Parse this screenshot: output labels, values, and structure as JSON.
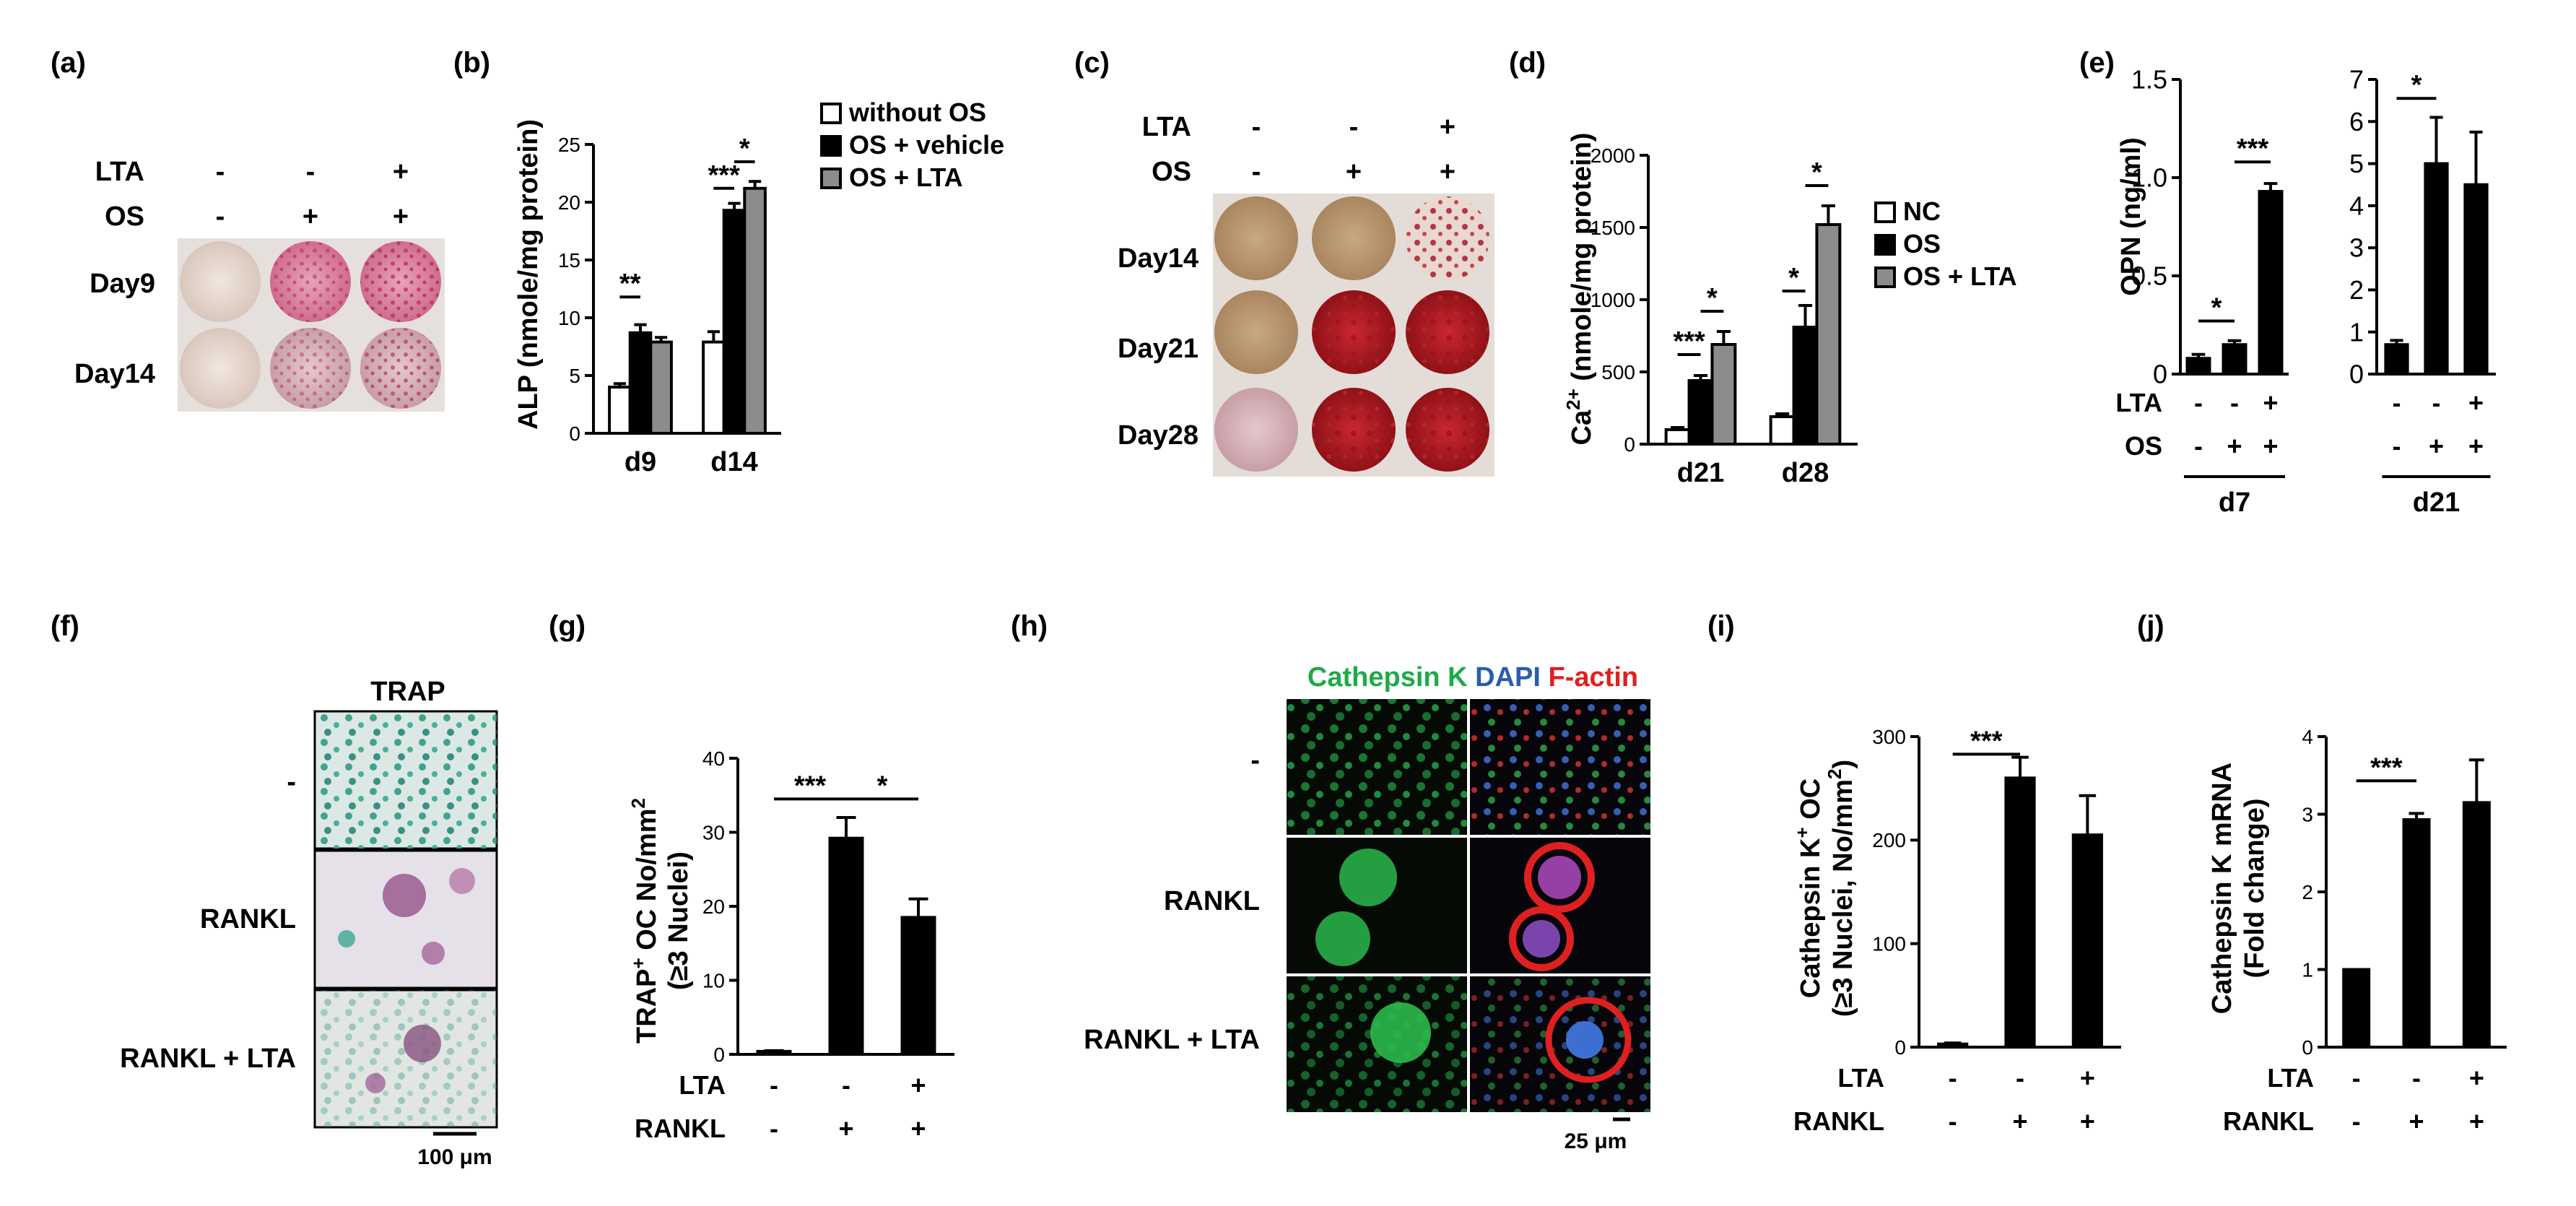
{
  "panel_labels": [
    "(a)",
    "(b)",
    "(c)",
    "(d)",
    "(e)",
    "(f)",
    "(g)",
    "(h)",
    "(i)",
    "(j)"
  ],
  "colors": {
    "without_os": "#ffffff",
    "vehicle": "#000000",
    "lta": "#8c8c8c",
    "ink": "#000000",
    "green": "#1faa4a",
    "blue": "#2a5db0",
    "red": "#e02020"
  },
  "panel_a": {
    "row_labels": [
      "LTA",
      "OS"
    ],
    "signs": [
      [
        "-",
        "-",
        "+"
      ],
      [
        "-",
        "+",
        "+"
      ]
    ],
    "day_labels": [
      "Day9",
      "Day14"
    ]
  },
  "panel_c": {
    "row_labels": [
      "LTA",
      "OS"
    ],
    "signs": [
      [
        "-",
        "-",
        "+"
      ],
      [
        "-",
        "+",
        "+"
      ]
    ],
    "day_labels": [
      "Day14",
      "Day21",
      "Day28"
    ]
  },
  "panel_f": {
    "column_title": "TRAP",
    "row_labels": [
      "-",
      "RANKL",
      "RANKL + LTA"
    ],
    "scale_label": "100 μm"
  },
  "panel_h": {
    "stain_labels": [
      "Cathepsin K",
      "DAPI",
      "F-actin"
    ],
    "row_labels": [
      "-",
      "RANKL",
      "RANKL + LTA"
    ],
    "scale_label": "25 μm"
  },
  "chart_data": [
    {
      "panel": "(b)",
      "type": "bar",
      "ylabel": "ALP (nmole/mg protein)",
      "ylim": [
        0,
        25
      ],
      "yticks": [
        0,
        5,
        10,
        15,
        20,
        25
      ],
      "categories": [
        "d9",
        "d14"
      ],
      "series": [
        {
          "name": "without OS",
          "values": [
            4.0,
            7.9
          ],
          "errors": [
            0.3,
            0.9
          ]
        },
        {
          "name": "OS + vehicle",
          "values": [
            8.7,
            19.3
          ],
          "errors": [
            0.7,
            0.6
          ]
        },
        {
          "name": "OS + LTA",
          "values": [
            7.9,
            21.2
          ],
          "errors": [
            0.4,
            0.6
          ]
        }
      ],
      "significance": [
        {
          "category": "d9",
          "from": 0,
          "to": 1,
          "label": "**",
          "y": 11.8
        },
        {
          "category": "d14",
          "from": 0,
          "to": 1,
          "label": "***",
          "y": 21.2
        },
        {
          "category": "d14",
          "from": 1,
          "to": 2,
          "label": "*",
          "y": 23.5
        }
      ],
      "legend": "right"
    },
    {
      "panel": "(d)",
      "type": "bar",
      "ylabel": "Ca2+ (nmole/mg protein)",
      "ylim": [
        0,
        2000
      ],
      "yticks": [
        0,
        500,
        1000,
        1500,
        2000
      ],
      "categories": [
        "d21",
        "d28"
      ],
      "series": [
        {
          "name": "NC",
          "values": [
            100,
            190
          ],
          "errors": [
            15,
            20
          ]
        },
        {
          "name": "OS",
          "values": [
            440,
            810
          ],
          "errors": [
            35,
            150
          ]
        },
        {
          "name": "OS + LTA",
          "values": [
            690,
            1520
          ],
          "errors": [
            90,
            130
          ]
        }
      ],
      "significance": [
        {
          "category": "d21",
          "from": 0,
          "to": 1,
          "label": "***",
          "y": 620
        },
        {
          "category": "d21",
          "from": 1,
          "to": 2,
          "label": "*",
          "y": 920
        },
        {
          "category": "d28",
          "from": 0,
          "to": 1,
          "label": "*",
          "y": 1060
        },
        {
          "category": "d28",
          "from": 1,
          "to": 2,
          "label": "*",
          "y": 1790
        }
      ],
      "legend": "right"
    },
    {
      "panel": "(e) d7",
      "type": "bar",
      "ylabel": "OPN (ng/ml)",
      "ylim": [
        0,
        1.5
      ],
      "yticks": [
        "0",
        "0.5",
        "1.0",
        "1.5"
      ],
      "group_label": "d7",
      "row_labels": [
        "LTA",
        "OS"
      ],
      "signs": [
        [
          "-",
          "-",
          "+"
        ],
        [
          "-",
          "+",
          "+"
        ]
      ],
      "values": [
        0.08,
        0.15,
        0.93
      ],
      "errors": [
        0.02,
        0.02,
        0.04
      ],
      "significance": [
        {
          "from": 0,
          "to": 1,
          "label": "*",
          "y": 0.27
        },
        {
          "from": 1,
          "to": 2,
          "label": "***",
          "y": 1.08
        }
      ]
    },
    {
      "panel": "(e) d21",
      "type": "bar",
      "ylim": [
        0,
        7
      ],
      "yticks": [
        "0",
        "1",
        "2",
        "3",
        "4",
        "5",
        "6",
        "7"
      ],
      "group_label": "d21",
      "signs": [
        [
          "-",
          "-",
          "+"
        ],
        [
          "-",
          "+",
          "+"
        ]
      ],
      "values": [
        0.7,
        5.0,
        4.5
      ],
      "errors": [
        0.1,
        1.1,
        1.25
      ],
      "significance": [
        {
          "from": 0,
          "to": 1,
          "label": "*",
          "y": 6.55
        }
      ]
    },
    {
      "panel": "(g)",
      "type": "bar",
      "ylabel_lines": [
        "TRAP+ OC No/mm2",
        "(≥3 Nuclei)"
      ],
      "ylim": [
        0,
        40
      ],
      "yticks": [
        "0",
        "10",
        "20",
        "30",
        "40"
      ],
      "row_labels": [
        "LTA",
        "RANKL"
      ],
      "signs": [
        [
          "-",
          "-",
          "+"
        ],
        [
          "-",
          "+",
          "+"
        ]
      ],
      "values": [
        0.4,
        29.2,
        18.5
      ],
      "errors": [
        0.1,
        2.8,
        2.5
      ],
      "significance": [
        {
          "from": 0,
          "to": 1,
          "label": "***",
          "y": 34.5
        },
        {
          "from": 1,
          "to": 2,
          "label": "*",
          "y": 34.5
        }
      ]
    },
    {
      "panel": "(i)",
      "type": "bar",
      "ylabel_lines": [
        "Cathepsin K+ OC",
        "(≥3 Nuclei, No/mm2)"
      ],
      "ylim": [
        0,
        300
      ],
      "yticks": [
        "0",
        "100",
        "200",
        "300"
      ],
      "row_labels": [
        "LTA",
        "RANKL"
      ],
      "signs": [
        [
          "-",
          "-",
          "+"
        ],
        [
          "-",
          "+",
          "+"
        ]
      ],
      "values": [
        3,
        260,
        205
      ],
      "errors": [
        1,
        20,
        38
      ],
      "significance": [
        {
          "from": 0,
          "to": 1,
          "label": "***",
          "y": 283
        }
      ]
    },
    {
      "panel": "(j)",
      "type": "bar",
      "ylabel_lines": [
        "Cathepsin K mRNA",
        "(Fold change)"
      ],
      "ylim": [
        0,
        4
      ],
      "yticks": [
        "0",
        "1",
        "2",
        "3",
        "4"
      ],
      "row_labels": [
        "LTA",
        "RANKL"
      ],
      "signs": [
        [
          "-",
          "-",
          "+"
        ],
        [
          "-",
          "+",
          "+"
        ]
      ],
      "values": [
        1.0,
        2.93,
        3.15
      ],
      "errors": [
        0.0,
        0.08,
        0.55
      ],
      "significance": [
        {
          "from": 0,
          "to": 1,
          "label": "***",
          "y": 3.43
        }
      ]
    }
  ]
}
